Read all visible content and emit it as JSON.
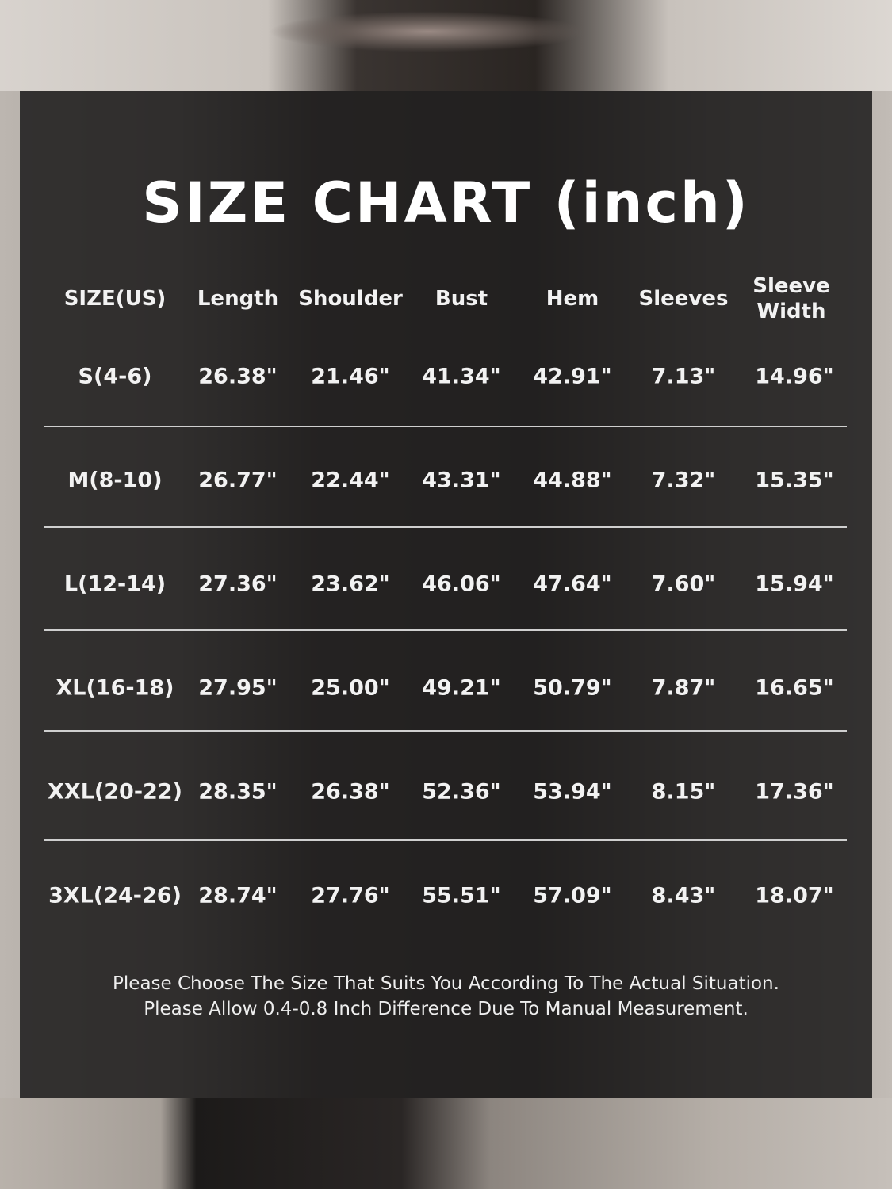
{
  "title": "SIZE CHART (inch)",
  "table": {
    "headers": [
      "SIZE(US)",
      "Length",
      "Shoulder",
      "Bust",
      "Hem",
      "Sleeves",
      "Sleeve Width"
    ],
    "rows": [
      [
        "S(4-6)",
        "26.38\"",
        "21.46\"",
        "41.34\"",
        "42.91\"",
        "7.13\"",
        "14.96\""
      ],
      [
        "M(8-10)",
        "26.77\"",
        "22.44\"",
        "43.31\"",
        "44.88\"",
        "7.32\"",
        "15.35\""
      ],
      [
        "L(12-14)",
        "27.36\"",
        "23.62\"",
        "46.06\"",
        "47.64\"",
        "7.60\"",
        "15.94\""
      ],
      [
        "XL(16-18)",
        "27.95\"",
        "25.00\"",
        "49.21\"",
        "50.79\"",
        "7.87\"",
        "16.65\""
      ],
      [
        "XXL(20-22)",
        "28.35\"",
        "26.38\"",
        "52.36\"",
        "53.94\"",
        "8.15\"",
        "17.36\""
      ],
      [
        "3XL(24-26)",
        "28.74\"",
        "27.76\"",
        "55.51\"",
        "57.09\"",
        "8.43\"",
        "18.07\""
      ]
    ]
  },
  "notes": [
    "Please Choose The Size That Suits You According To The Actual Situation.",
    "Please Allow 0.4-0.8 Inch Difference Due To Manual Measurement."
  ]
}
